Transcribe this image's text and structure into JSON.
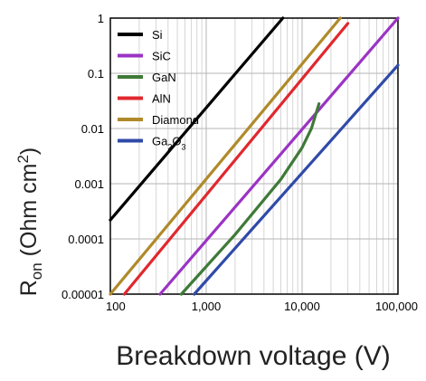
{
  "chart_data": {
    "type": "line",
    "title": "",
    "xlabel": "Breakdown voltage (V)",
    "ylabel": {
      "main": "R",
      "sub": "on",
      "rest": " (Ohm cm",
      "sup": "2",
      "close": ")"
    },
    "x_scale": "log",
    "y_scale": "log",
    "xlim": [
      100,
      100000
    ],
    "ylim": [
      1e-05,
      1
    ],
    "x_ticks": [
      {
        "value": 100,
        "label": "100"
      },
      {
        "value": 1000,
        "label": "1,000"
      },
      {
        "value": 10000,
        "label": "10,000"
      },
      {
        "value": 100000,
        "label": "100,000"
      }
    ],
    "y_ticks": [
      {
        "value": 1,
        "label": "1"
      },
      {
        "value": 0.1,
        "label": "0.1"
      },
      {
        "value": 0.01,
        "label": "0.01"
      },
      {
        "value": 0.001,
        "label": "0.001"
      },
      {
        "value": 0.0001,
        "label": "0.0001"
      },
      {
        "value": 1e-05,
        "label": "0.00001"
      }
    ],
    "grid": true,
    "legend_position": "top-left",
    "series": [
      {
        "name": "Si",
        "label_parts": [
          {
            "t": "Si"
          }
        ],
        "color": "#000000",
        "x": [
          100,
          6300
        ],
        "y": [
          0.00022,
          1
        ]
      },
      {
        "name": "SiC",
        "label_parts": [
          {
            "t": "SiC"
          }
        ],
        "color": "#9b33c4",
        "x": [
          330,
          100000
        ],
        "y": [
          1e-05,
          1
        ]
      },
      {
        "name": "GaN",
        "label_parts": [
          {
            "t": "GaN"
          }
        ],
        "color": "#3f7a38",
        "x": [
          550,
          2000,
          6000,
          10000,
          12500,
          15000
        ],
        "y": [
          1e-05,
          0.00012,
          0.0012,
          0.0045,
          0.01,
          0.028
        ]
      },
      {
        "name": "AlN",
        "label_parts": [
          {
            "t": "AlN"
          }
        ],
        "color": "#e0282e",
        "x": [
          140,
          30000
        ],
        "y": [
          1e-05,
          0.8
        ]
      },
      {
        "name": "Diamond",
        "label_parts": [
          {
            "t": "Diamond"
          }
        ],
        "color": "#b08a2a",
        "x": [
          100,
          25000
        ],
        "y": [
          1e-05,
          1
        ]
      },
      {
        "name": "Ga2O3",
        "label_parts": [
          {
            "t": "Ga"
          },
          {
            "t": "2",
            "sub": true
          },
          {
            "t": "O"
          },
          {
            "t": "3",
            "sub": true
          }
        ],
        "color": "#2f4aa8",
        "x": [
          750,
          100000
        ],
        "y": [
          1e-05,
          0.14
        ]
      }
    ]
  }
}
